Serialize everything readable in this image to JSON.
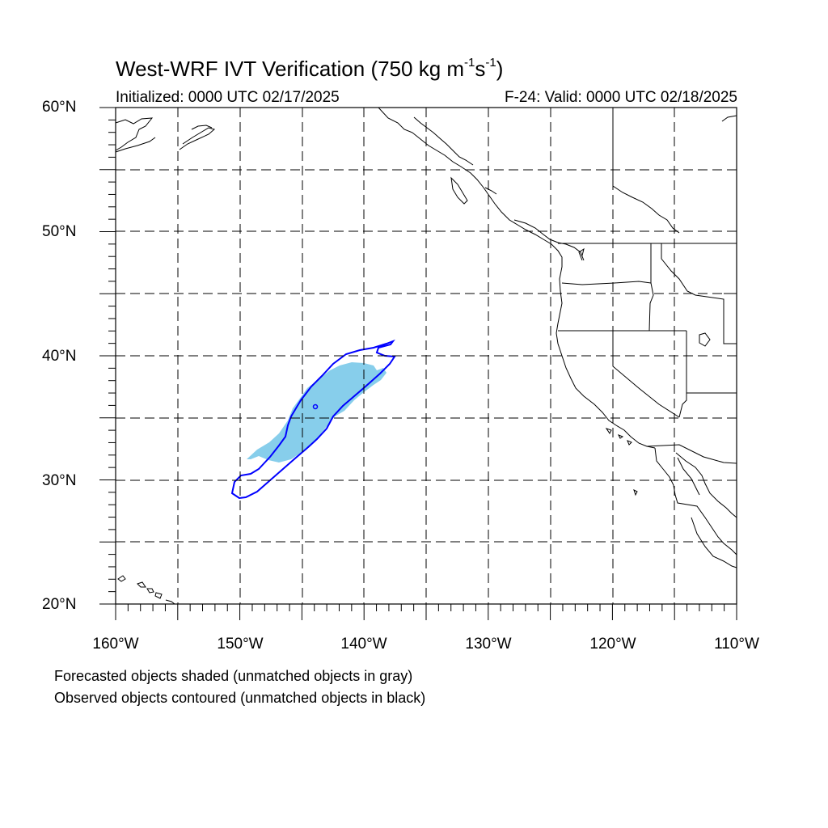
{
  "title": {
    "text": "West-WRF IVT Verification (750 kg m",
    "exp1": "-1",
    "mid": "s",
    "exp2": "-1",
    "close": ")"
  },
  "initialized": "Initialized: 0000 UTC 02/17/2025",
  "valid": "F-24: Valid: 0000 UTC 02/18/2025",
  "lat_labels": [
    "60°N",
    "50°N",
    "40°N",
    "30°N",
    "20°N"
  ],
  "lon_labels": [
    "160°W",
    "150°W",
    "140°W",
    "130°W",
    "120°W",
    "110°W"
  ],
  "notes": {
    "forecast": "Forecasted objects shaded (unmatched objects in gray)",
    "observed": "Observed objects contoured (unmatched objects in black)"
  },
  "colors": {
    "forecast_fill": "#87ceeb",
    "observed_contour": "#0000ff",
    "coastline": "#000000",
    "grid": "#000000"
  }
}
